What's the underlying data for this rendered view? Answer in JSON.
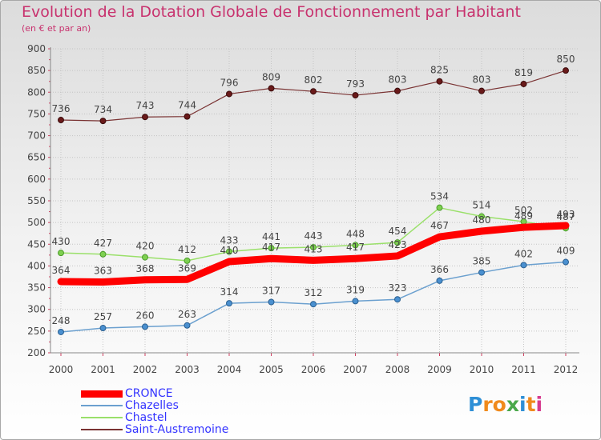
{
  "title": "Evolution de la Dotation Globale de Fonctionnement par Habitant",
  "subtitle": "(en € et par an)",
  "logo": {
    "letters": [
      "P",
      "r",
      "o",
      "x",
      "i",
      "t",
      "i"
    ],
    "colors": [
      "#2e8fd6",
      "#f08a1c",
      "#f08a1c",
      "#4aa84a",
      "#2e8fd6",
      "#f08a1c",
      "#d63a8e"
    ]
  },
  "chart_data": {
    "type": "line",
    "title": "Evolution de la Dotation Globale de Fonctionnement par Habitant",
    "ylabel": "(en € et par an)",
    "xlabel": "",
    "x": [
      "2000",
      "2001",
      "2002",
      "2003",
      "2004",
      "2005",
      "2006",
      "2007",
      "2008",
      "2009",
      "2010",
      "2011",
      "2012"
    ],
    "ylim": [
      200,
      900
    ],
    "yticks": [
      200,
      250,
      300,
      350,
      400,
      450,
      500,
      550,
      600,
      650,
      700,
      750,
      800,
      850,
      900
    ],
    "grid": true,
    "legend_position": "bottom-left",
    "series": [
      {
        "name": "CRONCE",
        "color": "#ff0000",
        "values": [
          364,
          363,
          368,
          369,
          410,
          417,
          413,
          417,
          423,
          467,
          480,
          489,
          493
        ]
      },
      {
        "name": "Chazelles",
        "color": "#6ba0cf",
        "values": [
          248,
          257,
          260,
          263,
          314,
          317,
          312,
          319,
          323,
          366,
          385,
          402,
          409
        ]
      },
      {
        "name": "Chastel",
        "color": "#9ae06a",
        "values": [
          430,
          427,
          420,
          412,
          433,
          441,
          443,
          448,
          454,
          534,
          514,
          502,
          487
        ]
      },
      {
        "name": "Saint-Austremoine",
        "color": "#7a3333",
        "values": [
          736,
          734,
          743,
          744,
          796,
          809,
          802,
          793,
          803,
          825,
          803,
          819,
          850
        ]
      }
    ]
  }
}
